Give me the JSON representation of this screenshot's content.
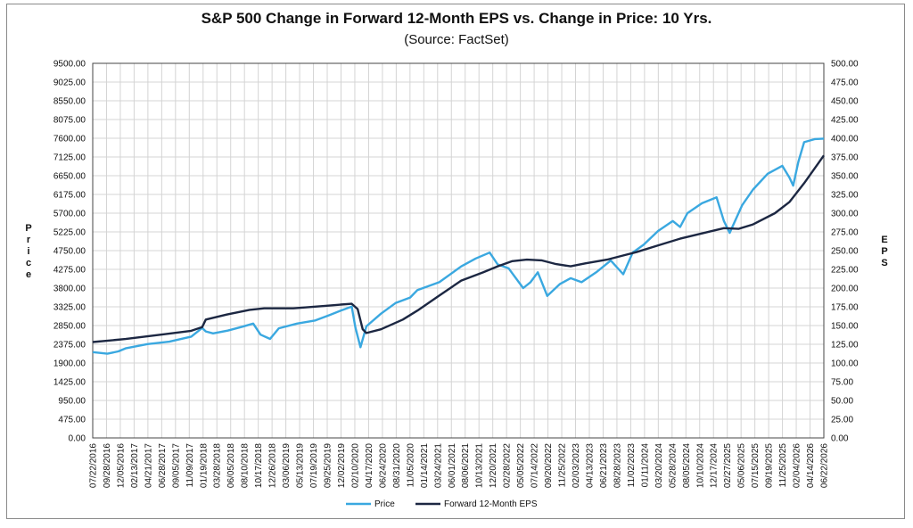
{
  "chart_data": {
    "type": "line",
    "title": "S&P 500 Change in Forward 12-Month EPS vs. Change in Price: 10 Yrs.",
    "subtitle": "(Source: FactSet)",
    "ylabel_left": "Price",
    "ylabel_right": "EPS",
    "ylim_left": [
      0,
      9500
    ],
    "ylim_right": [
      0,
      500
    ],
    "yticks_left": [
      "9500.00",
      "9025.00",
      "8550.00",
      "8075.00",
      "7600.00",
      "7125.00",
      "6650.00",
      "6175.00",
      "5700.00",
      "5225.00",
      "4750.00",
      "4275.00",
      "3800.00",
      "3325.00",
      "2850.00",
      "2375.00",
      "1900.00",
      "1425.00",
      "950.00",
      "475.00",
      "0.00"
    ],
    "yticks_right": [
      "500.00",
      "475.00",
      "450.00",
      "425.00",
      "400.00",
      "375.00",
      "350.00",
      "325.00",
      "300.00",
      "275.00",
      "250.00",
      "225.00",
      "200.00",
      "175.00",
      "150.00",
      "125.00",
      "100.00",
      "75.00",
      "50.00",
      "25.00",
      "0.00"
    ],
    "xtick_labels": [
      "07/22/2016",
      "09/28/2016",
      "12/05/2016",
      "02/13/2017",
      "04/21/2017",
      "06/28/2017",
      "09/05/2017",
      "11/09/2017",
      "01/19/2018",
      "03/28/2018",
      "06/05/2018",
      "08/10/2018",
      "10/17/2018",
      "12/26/2018",
      "03/06/2019",
      "05/13/2019",
      "07/19/2019",
      "09/25/2019",
      "12/02/2019",
      "02/10/2020",
      "04/17/2020",
      "06/24/2020",
      "08/31/2020",
      "11/05/2020",
      "01/14/2021",
      "03/24/2021",
      "06/01/2021",
      "08/06/2021",
      "10/13/2021",
      "12/20/2021",
      "02/28/2022",
      "05/05/2022",
      "07/14/2022",
      "09/20/2022",
      "11/25/2022",
      "02/03/2023",
      "04/13/2023",
      "06/21/2023",
      "08/28/2023",
      "11/02/2023",
      "01/11/2024",
      "03/20/2024",
      "05/28/2024",
      "08/05/2024",
      "10/10/2024",
      "12/17/2024",
      "02/27/2025",
      "05/06/2025",
      "07/15/2025",
      "09/19/2025",
      "11/25/2025",
      "02/04/2026",
      "04/14/2026",
      "06/22/2026"
    ],
    "grid": true,
    "legend_placement": "bottom-center",
    "series": [
      {
        "name": "Price",
        "axis": "left",
        "color": "#3aa8e0",
        "x": [
          2016.55,
          2016.75,
          2016.9,
          2017.0,
          2017.3,
          2017.6,
          2017.9,
          2018.05,
          2018.1,
          2018.2,
          2018.4,
          2018.6,
          2018.75,
          2018.85,
          2018.98,
          2019.1,
          2019.35,
          2019.6,
          2019.8,
          2019.95,
          2020.1,
          2020.15,
          2020.22,
          2020.3,
          2020.5,
          2020.7,
          2020.9,
          2021.0,
          2021.3,
          2021.6,
          2021.8,
          2021.99,
          2022.1,
          2022.25,
          2022.45,
          2022.55,
          2022.65,
          2022.78,
          2022.95,
          2023.1,
          2023.25,
          2023.45,
          2023.55,
          2023.65,
          2023.82,
          2023.95,
          2024.1,
          2024.3,
          2024.5,
          2024.6,
          2024.7,
          2024.9,
          2025.1,
          2025.2,
          2025.28,
          2025.45,
          2025.6,
          2025.8,
          2026.0,
          2026.1,
          2026.15,
          2026.22,
          2026.3,
          2026.45,
          2026.57
        ],
        "y": [
          2175,
          2135,
          2195,
          2270,
          2380,
          2440,
          2570,
          2790,
          2700,
          2650,
          2720,
          2820,
          2900,
          2620,
          2510,
          2780,
          2900,
          2980,
          3120,
          3230,
          3330,
          2800,
          2300,
          2830,
          3150,
          3420,
          3560,
          3750,
          3950,
          4350,
          4550,
          4700,
          4400,
          4300,
          3800,
          3950,
          4200,
          3600,
          3900,
          4050,
          3950,
          4200,
          4350,
          4500,
          4150,
          4700,
          4900,
          5250,
          5500,
          5350,
          5700,
          5950,
          6100,
          5500,
          5200,
          5900,
          6300,
          6700,
          6900,
          6600,
          6400,
          7000,
          7500,
          7580,
          7590
        ]
      },
      {
        "name": "Forward 12-Month EPS",
        "axis": "right",
        "color": "#1c2742",
        "x": [
          2016.55,
          2017.0,
          2017.5,
          2017.9,
          2018.05,
          2018.1,
          2018.4,
          2018.7,
          2018.9,
          2019.3,
          2019.7,
          2019.95,
          2020.1,
          2020.18,
          2020.25,
          2020.3,
          2020.5,
          2020.8,
          2021.0,
          2021.3,
          2021.6,
          2021.9,
          2022.1,
          2022.3,
          2022.5,
          2022.7,
          2022.9,
          2023.1,
          2023.3,
          2023.6,
          2023.8,
          2024.0,
          2024.3,
          2024.6,
          2024.9,
          2025.2,
          2025.4,
          2025.6,
          2025.9,
          2026.1,
          2026.3,
          2026.57
        ],
        "y": [
          128,
          132,
          138,
          143,
          148,
          158,
          165,
          171,
          173,
          173,
          176,
          178,
          179,
          172,
          145,
          140,
          145,
          158,
          170,
          190,
          210,
          221,
          229,
          236,
          238,
          237,
          232,
          229,
          233,
          238,
          243,
          248,
          257,
          266,
          273,
          280,
          279,
          285,
          300,
          315,
          340,
          377
        ]
      }
    ]
  }
}
